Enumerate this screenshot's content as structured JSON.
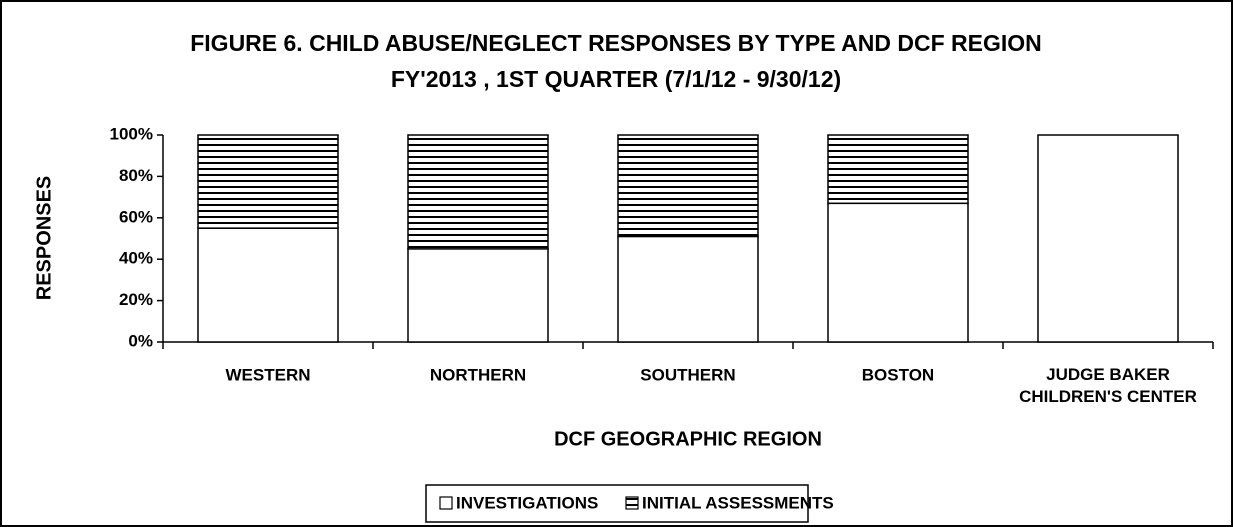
{
  "chart_data": {
    "type": "stacked_bar_percent",
    "title": "FIGURE 6. CHILD ABUSE/NEGLECT RESPONSES BY TYPE AND DCF REGION",
    "subtitle": "FY'2013 , 1ST QUARTER (7/1/12 - 9/30/12)",
    "x_label": "DCF GEOGRAPHIC REGION",
    "y_label": "RESPONSES",
    "categories": [
      "WESTERN",
      "NORTHERN",
      "SOUTHERN",
      "BOSTON",
      "JUDGE BAKER\nCHILDREN'S CENTER"
    ],
    "series": [
      {
        "name": "INVESTIGATIONS",
        "color": "#ffffff",
        "values": [
          55,
          45,
          51,
          67,
          100
        ]
      },
      {
        "name": "INITIAL ASSESSMENTS",
        "color": "#ffffff",
        "hatch": "horizontal",
        "values": [
          45,
          55,
          49,
          33,
          0
        ]
      }
    ],
    "ylim": [
      0,
      100
    ],
    "yticks": [
      {
        "value": 0,
        "label": "0%"
      },
      {
        "value": 20,
        "label": "20%"
      },
      {
        "value": 40,
        "label": "40%"
      },
      {
        "value": 60,
        "label": "60%"
      },
      {
        "value": 80,
        "label": "80%"
      },
      {
        "value": 100,
        "label": "100%"
      }
    ],
    "legend": "bottom"
  }
}
